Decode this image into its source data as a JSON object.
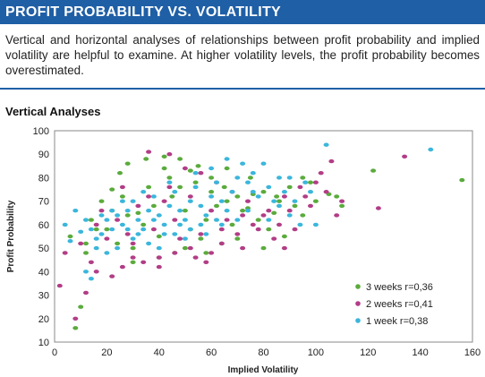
{
  "header": {
    "title": "PROFIT PROBABILITY VS. VOLATILITY"
  },
  "intro": "Vertical and horizontal analyses of relationships between profit probability and implied volatility are helpful to examine. At higher volatility levels, the profit probability becomes overestimated.",
  "section_title": "Vertical Analyses",
  "chart_data": {
    "type": "scatter",
    "xlabel": "Implied Volatility",
    "ylabel": "Profit Probability",
    "xlim": [
      0,
      160
    ],
    "ylim": [
      10,
      100
    ],
    "x_ticks": [
      "0",
      "20",
      "40",
      "60",
      "80",
      "100",
      "120",
      "140",
      "160"
    ],
    "y_ticks": [
      "10",
      "20",
      "30",
      "40",
      "50",
      "60",
      "70",
      "80",
      "90",
      "100"
    ],
    "grid": false,
    "legend_position": "bottom-right",
    "series": [
      {
        "name": "3 weeks",
        "label": "3 weeks  r=0,36",
        "color": "#5aab3c",
        "points": [
          [
            8,
            16
          ],
          [
            10,
            25
          ],
          [
            12,
            48
          ],
          [
            6,
            55
          ],
          [
            14,
            62
          ],
          [
            18,
            70
          ],
          [
            22,
            75
          ],
          [
            25,
            82
          ],
          [
            28,
            86
          ],
          [
            35,
            88
          ],
          [
            42,
            89
          ],
          [
            48,
            88
          ],
          [
            55,
            85
          ],
          [
            60,
            80
          ],
          [
            65,
            76
          ],
          [
            70,
            72
          ],
          [
            75,
            80
          ],
          [
            80,
            74
          ],
          [
            85,
            72
          ],
          [
            90,
            76
          ],
          [
            95,
            80
          ],
          [
            98,
            78
          ],
          [
            100,
            70
          ],
          [
            105,
            73
          ],
          [
            108,
            72
          ],
          [
            110,
            68
          ],
          [
            122,
            83
          ],
          [
            156,
            79
          ],
          [
            20,
            58
          ],
          [
            24,
            52
          ],
          [
            30,
            50
          ],
          [
            32,
            65
          ],
          [
            38,
            68
          ],
          [
            45,
            72
          ],
          [
            50,
            66
          ],
          [
            52,
            58
          ],
          [
            58,
            62
          ],
          [
            62,
            68
          ],
          [
            68,
            60
          ],
          [
            72,
            66
          ],
          [
            78,
            62
          ],
          [
            82,
            58
          ],
          [
            88,
            55
          ],
          [
            92,
            68
          ],
          [
            95,
            64
          ],
          [
            80,
            50
          ],
          [
            70,
            54
          ],
          [
            64,
            52
          ],
          [
            56,
            54
          ],
          [
            46,
            48
          ],
          [
            40,
            55
          ],
          [
            34,
            60
          ],
          [
            28,
            64
          ],
          [
            22,
            66
          ],
          [
            16,
            58
          ],
          [
            12,
            52
          ],
          [
            26,
            72
          ],
          [
            44,
            80
          ],
          [
            36,
            76
          ],
          [
            54,
            78
          ],
          [
            60,
            74
          ],
          [
            66,
            70
          ],
          [
            74,
            67
          ],
          [
            84,
            65
          ],
          [
            30,
            44
          ],
          [
            40,
            46
          ],
          [
            50,
            50
          ],
          [
            58,
            48
          ],
          [
            86,
            70
          ],
          [
            76,
            73
          ],
          [
            66,
            84
          ],
          [
            52,
            83
          ],
          [
            42,
            84
          ],
          [
            48,
            76
          ]
        ]
      },
      {
        "name": "2 weeks",
        "label": "2 weeks  r=0,41",
        "color": "#b23d86",
        "points": [
          [
            2,
            34
          ],
          [
            8,
            20
          ],
          [
            12,
            31
          ],
          [
            14,
            44
          ],
          [
            4,
            48
          ],
          [
            10,
            52
          ],
          [
            16,
            40
          ],
          [
            22,
            38
          ],
          [
            26,
            42
          ],
          [
            30,
            46
          ],
          [
            34,
            44
          ],
          [
            40,
            46
          ],
          [
            46,
            48
          ],
          [
            52,
            50
          ],
          [
            58,
            44
          ],
          [
            64,
            52
          ],
          [
            70,
            56
          ],
          [
            76,
            60
          ],
          [
            82,
            66
          ],
          [
            88,
            72
          ],
          [
            94,
            76
          ],
          [
            100,
            78
          ],
          [
            102,
            82
          ],
          [
            106,
            87
          ],
          [
            110,
            70
          ],
          [
            124,
            67
          ],
          [
            134,
            89
          ],
          [
            36,
            91
          ],
          [
            44,
            90
          ],
          [
            50,
            84
          ],
          [
            56,
            82
          ],
          [
            62,
            78
          ],
          [
            68,
            74
          ],
          [
            74,
            70
          ],
          [
            80,
            64
          ],
          [
            86,
            60
          ],
          [
            92,
            58
          ],
          [
            84,
            54
          ],
          [
            72,
            50
          ],
          [
            60,
            48
          ],
          [
            48,
            54
          ],
          [
            38,
            58
          ],
          [
            28,
            56
          ],
          [
            20,
            54
          ],
          [
            16,
            60
          ],
          [
            24,
            62
          ],
          [
            32,
            68
          ],
          [
            42,
            70
          ],
          [
            52,
            72
          ],
          [
            60,
            66
          ],
          [
            66,
            62
          ],
          [
            78,
            58
          ],
          [
            90,
            66
          ],
          [
            96,
            72
          ],
          [
            104,
            74
          ],
          [
            108,
            64
          ],
          [
            98,
            68
          ],
          [
            44,
            76
          ],
          [
            36,
            72
          ],
          [
            26,
            76
          ],
          [
            18,
            66
          ],
          [
            56,
            56
          ],
          [
            46,
            62
          ],
          [
            64,
            58
          ],
          [
            72,
            64
          ],
          [
            30,
            52
          ],
          [
            54,
            46
          ],
          [
            40,
            42
          ],
          [
            88,
            50
          ]
        ]
      },
      {
        "name": "1 week",
        "label": "1 week  r=0,38",
        "color": "#3bb6dc",
        "points": [
          [
            4,
            60
          ],
          [
            6,
            53
          ],
          [
            10,
            57
          ],
          [
            12,
            40
          ],
          [
            14,
            37
          ],
          [
            16,
            50
          ],
          [
            18,
            56
          ],
          [
            20,
            62
          ],
          [
            22,
            58
          ],
          [
            24,
            64
          ],
          [
            26,
            60
          ],
          [
            28,
            66
          ],
          [
            30,
            70
          ],
          [
            32,
            62
          ],
          [
            34,
            58
          ],
          [
            36,
            66
          ],
          [
            38,
            72
          ],
          [
            40,
            64
          ],
          [
            42,
            60
          ],
          [
            44,
            68
          ],
          [
            46,
            74
          ],
          [
            48,
            66
          ],
          [
            50,
            62
          ],
          [
            52,
            70
          ],
          [
            54,
            76
          ],
          [
            56,
            68
          ],
          [
            58,
            64
          ],
          [
            60,
            72
          ],
          [
            62,
            78
          ],
          [
            64,
            70
          ],
          [
            66,
            66
          ],
          [
            68,
            74
          ],
          [
            70,
            80
          ],
          [
            72,
            86
          ],
          [
            74,
            78
          ],
          [
            76,
            82
          ],
          [
            78,
            72
          ],
          [
            80,
            86
          ],
          [
            82,
            76
          ],
          [
            84,
            70
          ],
          [
            86,
            68
          ],
          [
            88,
            74
          ],
          [
            90,
            80
          ],
          [
            94,
            60
          ],
          [
            96,
            78
          ],
          [
            98,
            74
          ],
          [
            104,
            94
          ],
          [
            144,
            92
          ],
          [
            100,
            60
          ],
          [
            36,
            52
          ],
          [
            30,
            54
          ],
          [
            24,
            50
          ],
          [
            20,
            48
          ],
          [
            40,
            50
          ],
          [
            46,
            56
          ],
          [
            52,
            58
          ],
          [
            58,
            56
          ],
          [
            26,
            70
          ],
          [
            34,
            74
          ],
          [
            44,
            78
          ],
          [
            54,
            82
          ],
          [
            60,
            84
          ],
          [
            66,
            88
          ],
          [
            18,
            64
          ],
          [
            28,
            58
          ],
          [
            38,
            62
          ],
          [
            48,
            60
          ],
          [
            62,
            62
          ],
          [
            70,
            62
          ],
          [
            16,
            54
          ],
          [
            22,
            66
          ],
          [
            32,
            56
          ],
          [
            42,
            56
          ],
          [
            50,
            54
          ],
          [
            56,
            60
          ],
          [
            64,
            60
          ],
          [
            74,
            66
          ],
          [
            82,
            62
          ],
          [
            90,
            64
          ],
          [
            14,
            58
          ],
          [
            12,
            62
          ],
          [
            8,
            66
          ],
          [
            76,
            74
          ],
          [
            86,
            80
          ],
          [
            92,
            70
          ]
        ]
      }
    ]
  }
}
